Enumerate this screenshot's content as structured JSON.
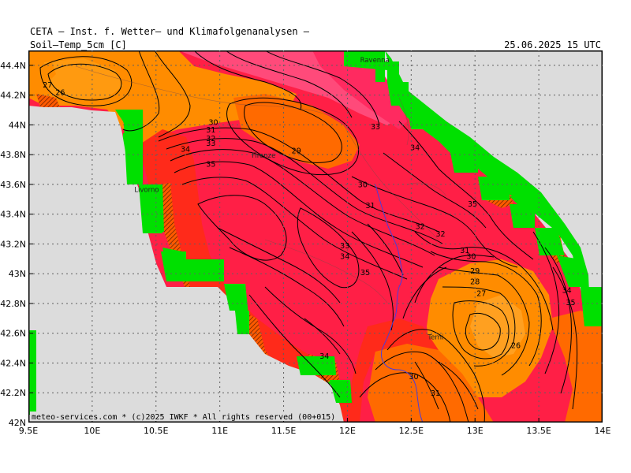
{
  "header": {
    "title": "CETA — Inst. f. Wetter— und Klimafolgenanalysen —",
    "variable": "Soil—Temp_5cm [C]",
    "valid_time": "25.06.2025 15 UTC"
  },
  "footer": {
    "copyright": "meteo-services.com * (c)2025 IWKF * All rights reserved (00+015)"
  },
  "axes": {
    "x_ticks": [
      "9.5E",
      "10E",
      "10.5E",
      "11E",
      "11.5E",
      "12E",
      "12.5E",
      "13E",
      "13.5E",
      "14E"
    ],
    "y_ticks": [
      "44.4N",
      "44.2N",
      "44N",
      "43.8N",
      "43.6N",
      "43.4N",
      "43.2N",
      "43N",
      "42.8N",
      "42.6N",
      "42.4N",
      "42.2N",
      "42N"
    ]
  },
  "cities": [
    {
      "name": "Ravenna",
      "lon": 12.1,
      "lat": 44.42
    },
    {
      "name": "Firenze",
      "lon": 11.25,
      "lat": 43.78
    },
    {
      "name": "Livorno",
      "lon": 10.33,
      "lat": 43.55
    },
    {
      "name": "Terni",
      "lon": 12.63,
      "lat": 42.56
    }
  ],
  "contour_labels": [
    {
      "text": "27",
      "lon": 9.65,
      "lat": 44.25
    },
    {
      "text": "26",
      "lon": 9.75,
      "lat": 44.2
    },
    {
      "text": "30",
      "lon": 10.95,
      "lat": 44.0
    },
    {
      "text": "31",
      "lon": 10.93,
      "lat": 43.95
    },
    {
      "text": "32",
      "lon": 10.93,
      "lat": 43.89
    },
    {
      "text": "33",
      "lon": 10.93,
      "lat": 43.86
    },
    {
      "text": "34",
      "lon": 10.73,
      "lat": 43.82
    },
    {
      "text": "35",
      "lon": 10.93,
      "lat": 43.72
    },
    {
      "text": "29",
      "lon": 11.6,
      "lat": 43.81
    },
    {
      "text": "33",
      "lon": 12.22,
      "lat": 43.97
    },
    {
      "text": "34",
      "lon": 12.53,
      "lat": 43.83
    },
    {
      "text": "30",
      "lon": 12.12,
      "lat": 43.58
    },
    {
      "text": "31",
      "lon": 12.18,
      "lat": 43.44
    },
    {
      "text": "32",
      "lon": 12.57,
      "lat": 43.3
    },
    {
      "text": "32",
      "lon": 12.73,
      "lat": 43.25
    },
    {
      "text": "35",
      "lon": 12.98,
      "lat": 43.45
    },
    {
      "text": "33",
      "lon": 11.98,
      "lat": 43.17
    },
    {
      "text": "34",
      "lon": 11.98,
      "lat": 43.1
    },
    {
      "text": "35",
      "lon": 12.14,
      "lat": 42.99
    },
    {
      "text": "31",
      "lon": 12.92,
      "lat": 43.14
    },
    {
      "text": "30",
      "lon": 12.97,
      "lat": 43.1
    },
    {
      "text": "29",
      "lon": 13.0,
      "lat": 43.0
    },
    {
      "text": "28",
      "lon": 13.0,
      "lat": 42.93
    },
    {
      "text": "27",
      "lon": 13.05,
      "lat": 42.85
    },
    {
      "text": "26",
      "lon": 13.32,
      "lat": 42.5
    },
    {
      "text": "34",
      "lon": 13.72,
      "lat": 42.87
    },
    {
      "text": "35",
      "lon": 13.75,
      "lat": 42.79
    },
    {
      "text": "34",
      "lon": 11.82,
      "lat": 42.43
    },
    {
      "text": "30",
      "lon": 12.52,
      "lat": 42.29
    },
    {
      "text": "31",
      "lon": 12.69,
      "lat": 42.18
    }
  ],
  "colors": {
    "sea": "#dcdcdc",
    "missing": "#00e000",
    "t26": "#ff8c00",
    "t28": "#ff6a00",
    "t30": "#ff4500",
    "t31": "#ff2a1a",
    "t33": "#ff1f46",
    "t35": "#ff1852",
    "t36": "#ff2a60",
    "t37": "#ff4a7a"
  }
}
